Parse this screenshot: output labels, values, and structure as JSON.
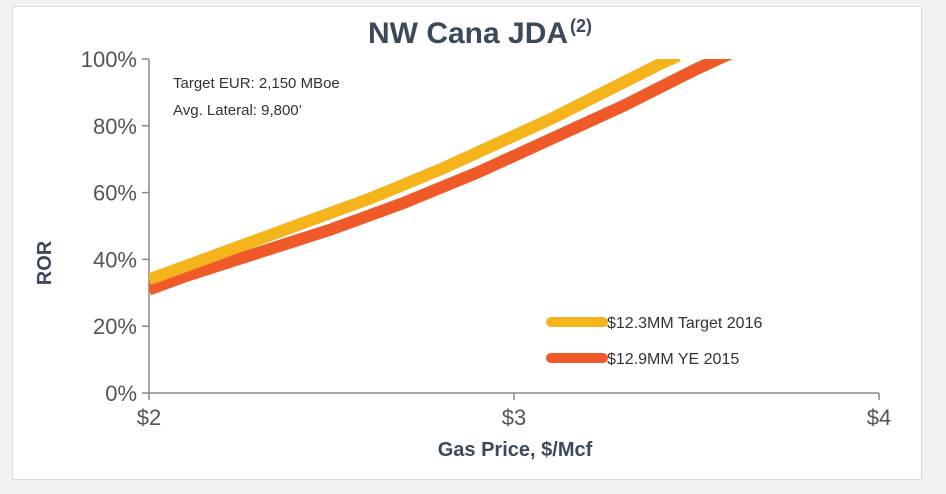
{
  "chart_data": {
    "type": "line",
    "title": "NW Cana JDA",
    "title_superscript": "(2)",
    "xlabel": "Gas Price, $/Mcf",
    "ylabel": "ROR",
    "xlim": [
      2,
      4
    ],
    "ylim": [
      0,
      100
    ],
    "x_ticks": [
      2,
      3,
      4
    ],
    "x_tick_labels": [
      "$2",
      "$3",
      "$4"
    ],
    "y_ticks": [
      0,
      20,
      40,
      60,
      80,
      100
    ],
    "y_tick_labels": [
      "0%",
      "20%",
      "40%",
      "60%",
      "80%",
      "100%"
    ],
    "grid": false,
    "legend_position": "bottom-right",
    "annotations": [
      "Target EUR: 2,150 MBoe",
      "Avg. Lateral: 9,800’"
    ],
    "series": [
      {
        "name": "$12.3MM Target 2016",
        "color": "#f5b41c",
        "x": [
          2.0,
          2.1,
          2.2,
          2.3,
          2.4,
          2.5,
          2.6,
          2.7,
          2.8,
          2.9,
          3.0,
          3.1,
          3.2,
          3.3,
          3.4,
          3.45
        ],
        "y": [
          34,
          38,
          42,
          46,
          50,
          54,
          58,
          62.5,
          67,
          72,
          77,
          82,
          87.5,
          93,
          98.5,
          101
        ]
      },
      {
        "name": "$12.9MM YE 2015",
        "color": "#ef5a28",
        "x": [
          2.0,
          2.1,
          2.2,
          2.3,
          2.4,
          2.5,
          2.6,
          2.7,
          2.8,
          2.9,
          3.0,
          3.1,
          3.2,
          3.3,
          3.4,
          3.5,
          3.6,
          3.62
        ],
        "y": [
          31,
          35,
          38.5,
          42,
          45.5,
          49,
          53,
          57,
          61.5,
          66,
          71,
          76,
          81,
          86,
          91.5,
          97,
          102,
          103
        ]
      }
    ]
  }
}
